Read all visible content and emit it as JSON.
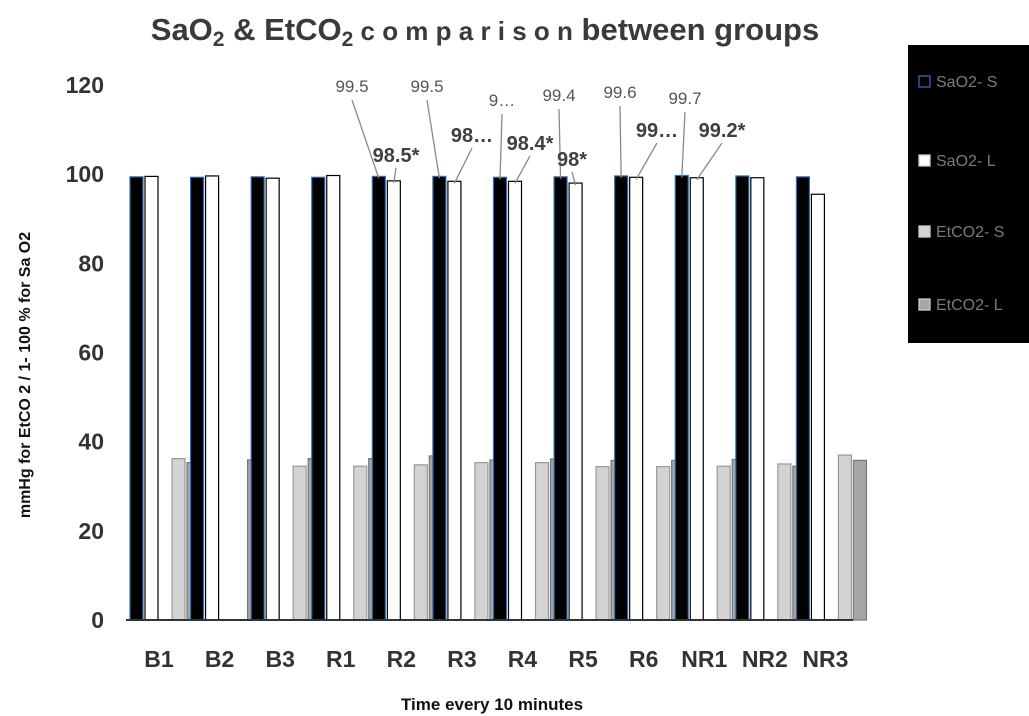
{
  "chart_data": {
    "type": "bar",
    "title": {
      "parts": [
        {
          "text": "SaO",
          "sub": false
        },
        {
          "text": "2",
          "sub": true
        },
        {
          "text": " & EtCO",
          "sub": false
        },
        {
          "text": "2",
          "sub": true
        },
        {
          "text": " c o m p a r i s o n",
          "sub": false,
          "small": true
        },
        {
          "text": " between groups",
          "sub": false
        }
      ]
    },
    "xlabel": "Time every 10 minutes",
    "ylabel": "mmHg for EtCO 2 / 1- 100 % for Sa O2",
    "ylim": [
      0,
      120
    ],
    "yticks": [
      0,
      20,
      40,
      60,
      80,
      100,
      120
    ],
    "categories": [
      "B1",
      "B2",
      "B3",
      "R1",
      "R2",
      "R3",
      "R4",
      "R5",
      "R6",
      "NR1",
      "NR2",
      "NR3"
    ],
    "series": [
      {
        "name": "SaO2- S",
        "color": "#000000",
        "stroke": "#2e6db4",
        "values": [
          99.4,
          99.3,
          99.4,
          99.3,
          99.5,
          99.5,
          99.3,
          99.4,
          99.6,
          99.7,
          99.6,
          99.4
        ]
      },
      {
        "name": "SaO2- L",
        "color": "#ffffff",
        "stroke": "#000000",
        "values": [
          99.5,
          99.6,
          99.1,
          99.7,
          98.5,
          98.4,
          98.4,
          98.0,
          99.3,
          99.2,
          99.2,
          95.5
        ]
      },
      {
        "name": "EtCO2- S",
        "color": "#d3d3d3",
        "stroke": "#999999",
        "values": [
          36.2,
          0,
          34.5,
          34.5,
          34.8,
          35.3,
          35.3,
          34.4,
          34.4,
          34.5,
          35.0,
          37.0
        ]
      },
      {
        "name": "EtCO2- L",
        "color": "#a6a6a6",
        "stroke": "#777777",
        "values": [
          35.3,
          35.9,
          36.2,
          36.2,
          36.8,
          35.9,
          36.1,
          35.8,
          35.8,
          36.0,
          34.5,
          35.8
        ]
      }
    ],
    "annotations": [
      {
        "text": "99.5",
        "category": "R2",
        "series": 0,
        "style": "plain"
      },
      {
        "text": "98.5*",
        "category": "R2",
        "series": 1,
        "style": "bold"
      },
      {
        "text": "99.5",
        "category": "R3",
        "series": 0,
        "style": "plain"
      },
      {
        "text": "98…",
        "category": "R3",
        "series": 1,
        "style": "bold"
      },
      {
        "text": "9…",
        "category": "R4",
        "series": 0,
        "style": "plain"
      },
      {
        "text": "98.4*",
        "category": "R4",
        "series": 1,
        "style": "bold"
      },
      {
        "text": "99.4",
        "category": "R5",
        "series": 0,
        "style": "plain"
      },
      {
        "text": "98*",
        "category": "R5",
        "series": 1,
        "style": "bold"
      },
      {
        "text": "99.6",
        "category": "R6",
        "series": 0,
        "style": "plain"
      },
      {
        "text": "99…",
        "category": "R6",
        "series": 1,
        "style": "bold"
      },
      {
        "text": "99.7",
        "category": "NR1",
        "series": 0,
        "style": "plain"
      },
      {
        "text": "99.2*",
        "category": "NR1",
        "series": 1,
        "style": "bold"
      }
    ],
    "grid": false,
    "legend": {
      "position": "right",
      "background": "#000000"
    }
  }
}
